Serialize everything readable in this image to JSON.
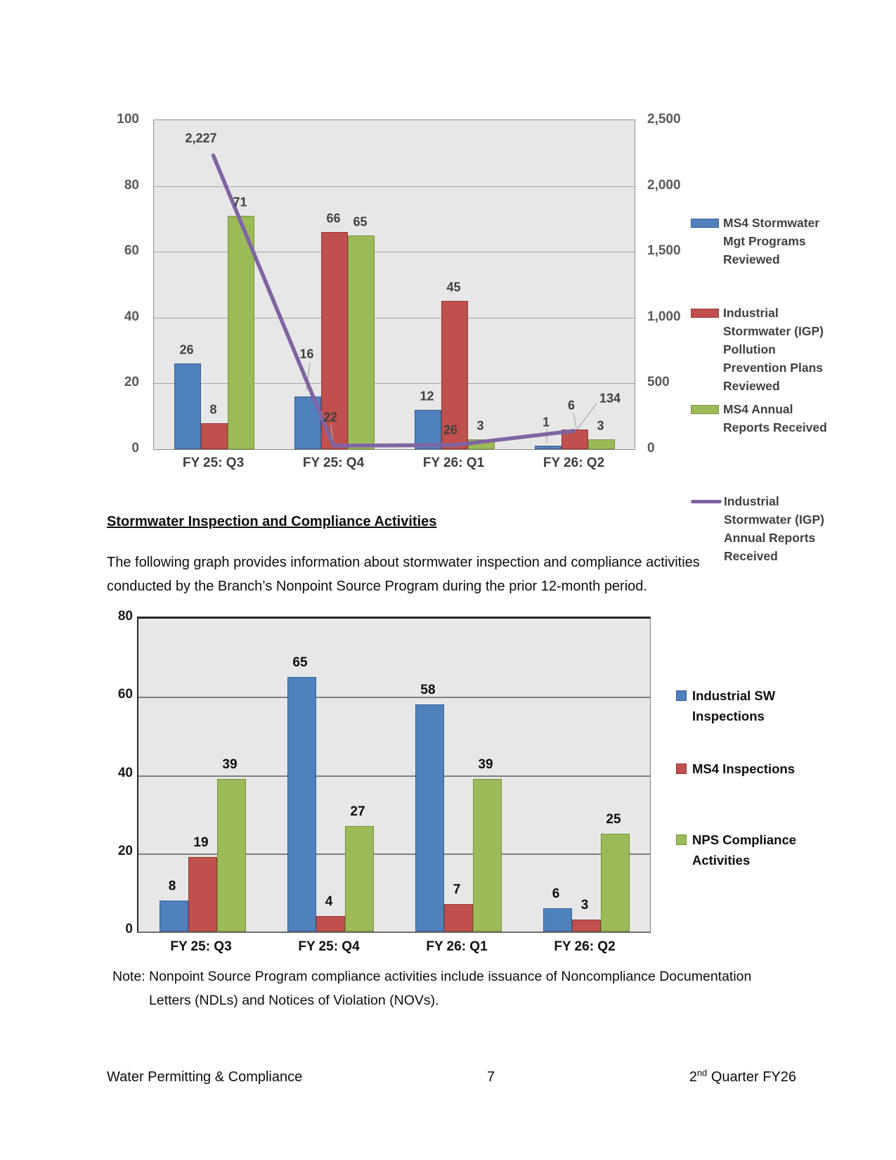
{
  "document": {
    "section_heading": "Stormwater Inspection and Compliance Activities",
    "paragraph": "The following graph provides information about stormwater inspection and compliance activities conducted by the Branch’s Nonpoint Source Program during the prior 12-month period.",
    "note": {
      "label": "Note:",
      "line1": "Nonpoint Source Program compliance activities include issuance of Noncompliance Documentation",
      "line2": "Letters (NDLs) and Notices of Violation (NOVs)."
    },
    "footer": {
      "left": "Water Permitting & Compliance",
      "page_number": "7",
      "right_base": "2",
      "right_superscript": "nd",
      "right_rest": " Quarter FY26"
    }
  },
  "colors": {
    "bar_blue": "#4F81BD",
    "bar_blue_border": "#366092",
    "bar_red": "#C0504D",
    "bar_red_border": "#953734",
    "bar_green": "#9BBB59",
    "bar_green_border": "#76923C",
    "line_purple": "#8064A2",
    "plot_background": "#E7E7E7",
    "leader_gray": "#ABABAB"
  },
  "chart_data": [
    {
      "type": "bar",
      "title": "",
      "categories": [
        "FY 25: Q3",
        "FY 25: Q4",
        "FY 26: Q1",
        "FY 26: Q2"
      ],
      "left_axis": {
        "min": 0,
        "max": 100,
        "tick_interval": 20,
        "tick_labels": [
          "0",
          "20",
          "40",
          "60",
          "80",
          "100"
        ]
      },
      "right_axis": {
        "min": 0,
        "max": 2500,
        "tick_interval": 500,
        "tick_labels": [
          "0",
          "500",
          "1,000",
          "1,500",
          "2,000",
          "2,500"
        ]
      },
      "grid": true,
      "legend_position": "right",
      "series": [
        {
          "name": "MS4 Stormwater Mgt Programs Reviewed",
          "type": "bar",
          "axis": "left",
          "color": "#4F81BD",
          "border": "#366092",
          "values": [
            26,
            16,
            12,
            1
          ]
        },
        {
          "name": "Industrial Stormwater (IGP) Pollution Prevention Plans Reviewed",
          "type": "bar",
          "axis": "left",
          "color": "#C0504D",
          "border": "#953734",
          "values": [
            8,
            66,
            45,
            6
          ]
        },
        {
          "name": "MS4 Annual Reports Received",
          "type": "bar",
          "axis": "left",
          "color": "#9BBB59",
          "border": "#76923C",
          "values": [
            71,
            65,
            3,
            3
          ]
        },
        {
          "name": "Industrial Stormwater (IGP) Annual Reports Received",
          "type": "line",
          "axis": "right",
          "color": "#8064A2",
          "values": [
            2227,
            22,
            26,
            134
          ]
        }
      ]
    },
    {
      "type": "bar",
      "title": "",
      "categories": [
        "FY 25: Q3",
        "FY 25: Q4",
        "FY 26: Q1",
        "FY 26: Q2"
      ],
      "y_axis": {
        "min": 0,
        "max": 80,
        "tick_interval": 20,
        "tick_labels": [
          "0",
          "20",
          "40",
          "60",
          "80"
        ]
      },
      "grid": true,
      "legend_position": "right",
      "series": [
        {
          "name": "Industrial SW Inspections",
          "type": "bar",
          "color": "#4F81BD",
          "border": "#366092",
          "values": [
            8,
            65,
            58,
            6
          ]
        },
        {
          "name": "MS4 Inspections",
          "type": "bar",
          "color": "#C0504D",
          "border": "#953734",
          "values": [
            19,
            4,
            7,
            3
          ]
        },
        {
          "name": "NPS Compliance Activities",
          "type": "bar",
          "color": "#9BBB59",
          "border": "#76923C",
          "values": [
            39,
            27,
            39,
            25
          ]
        }
      ]
    }
  ]
}
